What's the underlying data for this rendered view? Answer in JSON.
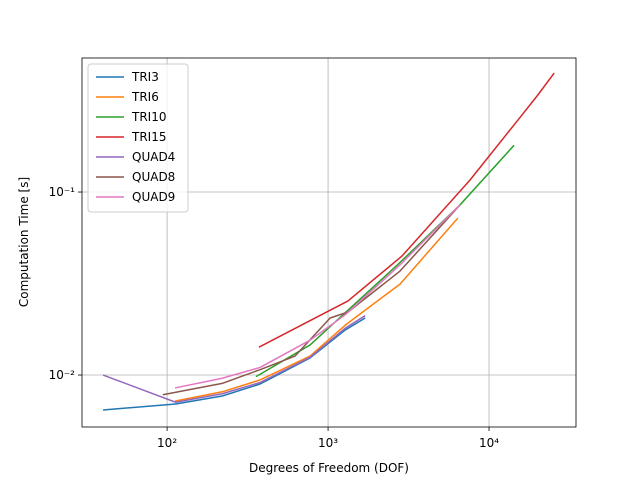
{
  "chart_data": {
    "type": "line",
    "xlabel": "Degrees of Freedom (DOF)",
    "ylabel": "Computation Time [s]",
    "xscale": "log",
    "yscale": "log",
    "grid": true,
    "legend": "upper left",
    "xlim": [
      29.6,
      34700
    ],
    "ylim": [
      0.0052,
      0.54
    ],
    "xticks": [
      {
        "value": 100,
        "label": "10²"
      },
      {
        "value": 1000,
        "label": "10³"
      },
      {
        "value": 10000,
        "label": "10⁴"
      }
    ],
    "yticks": [
      {
        "value": 0.01,
        "label": "10⁻²"
      },
      {
        "value": 0.1,
        "label": "10⁻¹"
      }
    ],
    "series": [
      {
        "name": "TRI3",
        "color": "#1f77b4",
        "x": [
          40,
          113,
          220,
          378,
          773,
          1276,
          1700
        ],
        "values": [
          0.00644,
          0.00695,
          0.00768,
          0.00893,
          0.0124,
          0.0176,
          0.0205
        ]
      },
      {
        "name": "TRI6",
        "color": "#ff7f0e",
        "x": [
          112,
          220,
          378,
          773,
          1276,
          2800,
          6400
        ],
        "values": [
          0.0072,
          0.0081,
          0.0094,
          0.0127,
          0.0187,
          0.0314,
          0.072
        ]
      },
      {
        "name": "TRI10",
        "color": "#2ca02c",
        "x": [
          357,
          773,
          2700,
          6600,
          14300
        ],
        "values": [
          0.0098,
          0.0146,
          0.04,
          0.085,
          0.18
        ]
      },
      {
        "name": "TRI15",
        "color": "#d62728",
        "x": [
          372,
          1330,
          2880,
          7600,
          15100,
          20100,
          25400
        ],
        "values": [
          0.0142,
          0.0254,
          0.0447,
          0.116,
          0.247,
          0.339,
          0.447
        ]
      },
      {
        "name": "QUAD4",
        "color": "#9467bd",
        "x": [
          40,
          113,
          220,
          378,
          773,
          1276,
          1700
        ],
        "values": [
          0.01,
          0.0071,
          0.0079,
          0.0091,
          0.0125,
          0.018,
          0.0211
        ]
      },
      {
        "name": "QUAD8",
        "color": "#8c564b",
        "x": [
          94,
          220,
          378,
          624,
          1030,
          1330,
          2800,
          6600
        ],
        "values": [
          0.0078,
          0.009,
          0.0107,
          0.0127,
          0.0205,
          0.0221,
          0.037,
          0.085
        ]
      },
      {
        "name": "QUAD9",
        "color": "#e377c2",
        "x": [
          112,
          220,
          378,
          773,
          1276,
          2800,
          6600
        ],
        "values": [
          0.0085,
          0.0096,
          0.011,
          0.0155,
          0.0213,
          0.04,
          0.085
        ]
      }
    ]
  }
}
